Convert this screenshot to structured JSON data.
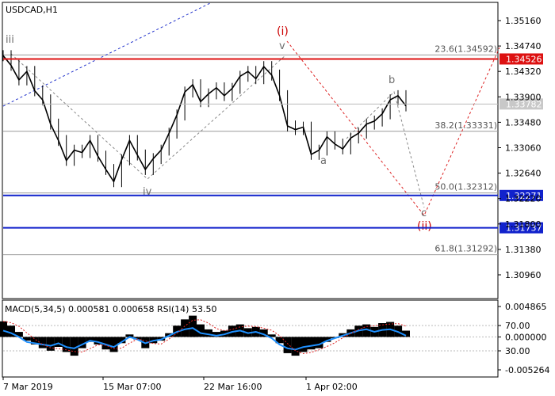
{
  "chart_data": {
    "type": "line",
    "symbol_label": "USDCAD,H1",
    "price_axis_ticks": [
      "1.35160",
      "1.34740",
      "1.34320",
      "1.33900",
      "1.33480",
      "1.33060",
      "1.32640",
      "1.32220",
      "1.31800",
      "1.31380",
      "1.30960"
    ],
    "ylim": [
      1.3068,
      1.3537
    ],
    "x_ticks": [
      "7 Mar 2019",
      "15 Mar 07:00",
      "22 Mar 16:00",
      "1 Apr 02:00"
    ],
    "resistance_level": "1.34526",
    "support_level_1": "1.32271",
    "support_level_2": "1.31737",
    "current_price": "1.33782",
    "fibonacci_levels": [
      {
        "label": "23.6(1.34592)",
        "price": 1.34592
      },
      {
        "label": "38.2(1.33331)",
        "price": 1.33331
      },
      {
        "label": "50.0(1.32312)",
        "price": 1.32312
      },
      {
        "label": "61.8(1.31292)",
        "price": 1.31292
      }
    ],
    "price_series": [
      1.3458,
      1.3442,
      1.3418,
      1.3432,
      1.34,
      1.3385,
      1.3345,
      1.3318,
      1.3285,
      1.3302,
      1.3298,
      1.3318,
      1.3292,
      1.327,
      1.325,
      1.3286,
      1.3318,
      1.3294,
      1.327,
      1.3288,
      1.3302,
      1.333,
      1.336,
      1.3398,
      1.341,
      1.3382,
      1.3395,
      1.3405,
      1.3392,
      1.3404,
      1.3424,
      1.3432,
      1.342,
      1.344,
      1.3426,
      1.3392,
      1.3342,
      1.3336,
      1.334,
      1.3295,
      1.3302,
      1.3324,
      1.3312,
      1.3304,
      1.3322,
      1.333,
      1.3345,
      1.335,
      1.3362,
      1.3385,
      1.3392,
      1.3375
    ],
    "wave_labels": {
      "iii": "iii",
      "iv": "iv",
      "v": "v",
      "i": "(i)",
      "a": "a",
      "b": "b",
      "c": "c",
      "ii": "(ii)"
    },
    "indicator": {
      "label": "MACD(5,34,5) 0.000581 0.000658 RSI(14) 53.50",
      "axis_ticks": [
        "0.004865",
        "70.00",
        "0.000000",
        "30.00",
        "-0.005264"
      ],
      "macd_range": [
        -0.005264,
        0.004865
      ],
      "histogram": [
        0.0025,
        0.0018,
        0.0008,
        -0.0006,
        -0.0012,
        -0.0018,
        -0.0022,
        -0.0016,
        -0.0024,
        -0.003,
        -0.0018,
        -0.0008,
        -0.0012,
        -0.002,
        -0.0024,
        -0.001,
        0.0004,
        -0.0004,
        -0.0018,
        -0.001,
        -0.0006,
        0.0006,
        0.0018,
        0.0028,
        0.0034,
        0.002,
        0.0012,
        0.0008,
        0.001,
        0.0018,
        0.002,
        0.0014,
        0.0016,
        0.0012,
        0.0004,
        -0.001,
        -0.0026,
        -0.003,
        -0.0024,
        -0.002,
        -0.0018,
        -0.0008,
        -0.0002,
        0.0006,
        0.0012,
        0.0018,
        0.002,
        0.0016,
        0.0022,
        0.0024,
        0.0018,
        0.001
      ],
      "rsi": [
        62,
        58,
        52,
        44,
        42,
        40,
        38,
        42,
        36,
        34,
        40,
        46,
        44,
        40,
        36,
        44,
        52,
        48,
        42,
        46,
        48,
        54,
        60,
        64,
        66,
        58,
        56,
        54,
        56,
        60,
        62,
        58,
        60,
        56,
        50,
        40,
        34,
        32,
        36,
        38,
        40,
        46,
        50,
        54,
        58,
        62,
        64,
        60,
        63,
        64,
        60,
        54
      ]
    }
  }
}
